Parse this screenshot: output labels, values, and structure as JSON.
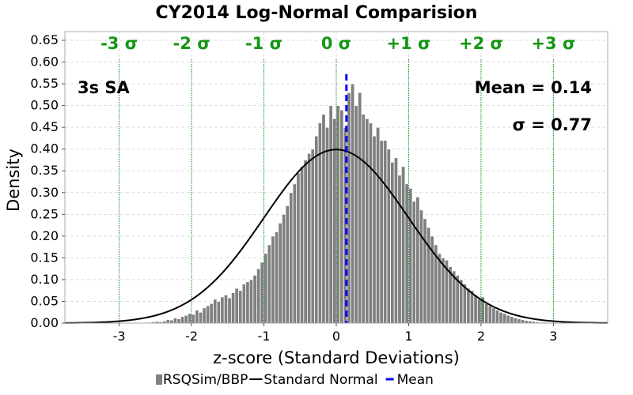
{
  "chart_data": {
    "type": "bar",
    "title": "CY2014 Log-Normal Comparision",
    "xlabel": "z-score (Standard Deviations)",
    "ylabel": "Density",
    "xlim": [
      -3.75,
      3.75
    ],
    "ylim": [
      0,
      0.67
    ],
    "xticks": [
      -3,
      -2,
      -1,
      0,
      1,
      2,
      3
    ],
    "xtick_labels": [
      "-3",
      "-2",
      "-1",
      "0",
      "1",
      "2",
      "3"
    ],
    "yticks": [
      0.0,
      0.05,
      0.1,
      0.15,
      0.2,
      0.25,
      0.3,
      0.35,
      0.4,
      0.45,
      0.5,
      0.55,
      0.6,
      0.65
    ],
    "ytick_labels": [
      "0.00",
      "0.05",
      "0.10",
      "0.15",
      "0.20",
      "0.25",
      "0.30",
      "0.35",
      "0.40",
      "0.45",
      "0.50",
      "0.55",
      "0.60",
      "0.65"
    ],
    "grid": true,
    "legend_position": "bottom",
    "sigma_lines": [
      {
        "x": -3,
        "label": "-3 σ"
      },
      {
        "x": -2,
        "label": "-2 σ"
      },
      {
        "x": -1,
        "label": "-1 σ"
      },
      {
        "x": 0,
        "label": "0 σ"
      },
      {
        "x": 1,
        "label": "+1 σ"
      },
      {
        "x": 2,
        "label": "+2 σ"
      },
      {
        "x": 3,
        "label": "+3 σ"
      }
    ],
    "annotations": {
      "period": "3s SA",
      "mean_text": "Mean = 0.14",
      "sigma_text": "σ = 0.77"
    },
    "mean": 0.14,
    "histogram": {
      "name": "RSQSim/BBP",
      "bin_width": 0.05,
      "bin_start": -2.6,
      "values": [
        0.002,
        0.003,
        0.004,
        0.003,
        0.005,
        0.008,
        0.007,
        0.012,
        0.01,
        0.015,
        0.018,
        0.022,
        0.02,
        0.03,
        0.025,
        0.035,
        0.04,
        0.045,
        0.055,
        0.05,
        0.06,
        0.065,
        0.058,
        0.07,
        0.08,
        0.075,
        0.09,
        0.095,
        0.1,
        0.11,
        0.125,
        0.14,
        0.16,
        0.18,
        0.2,
        0.21,
        0.23,
        0.25,
        0.27,
        0.3,
        0.32,
        0.345,
        0.36,
        0.375,
        0.39,
        0.4,
        0.43,
        0.46,
        0.48,
        0.45,
        0.5,
        0.47,
        0.5,
        0.49,
        0.45,
        0.53,
        0.55,
        0.5,
        0.53,
        0.48,
        0.47,
        0.46,
        0.43,
        0.45,
        0.42,
        0.42,
        0.4,
        0.37,
        0.38,
        0.34,
        0.36,
        0.32,
        0.31,
        0.28,
        0.29,
        0.26,
        0.24,
        0.22,
        0.2,
        0.18,
        0.16,
        0.15,
        0.145,
        0.13,
        0.12,
        0.11,
        0.1,
        0.09,
        0.08,
        0.075,
        0.065,
        0.055,
        0.06,
        0.045,
        0.04,
        0.035,
        0.03,
        0.025,
        0.022,
        0.018,
        0.015,
        0.012,
        0.01,
        0.008,
        0.006,
        0.005,
        0.004,
        0.003,
        0.002,
        0.002,
        0.001,
        0.001
      ]
    },
    "normal_curve": {
      "name": "Standard Normal",
      "mean": 0,
      "sd": 1
    },
    "legend": [
      {
        "label": "RSQSim/BBP",
        "kind": "bar",
        "color": "#808080"
      },
      {
        "label": "Standard Normal",
        "kind": "line",
        "color": "#000000"
      },
      {
        "label": "Mean",
        "kind": "dash",
        "color": "#0000ff"
      }
    ],
    "colors": {
      "bars": "#808080",
      "bar_edge": "#ffffff",
      "normal": "#000000",
      "mean": "#0000ff",
      "sigma": "#149614",
      "grid": "#dddddd"
    }
  }
}
